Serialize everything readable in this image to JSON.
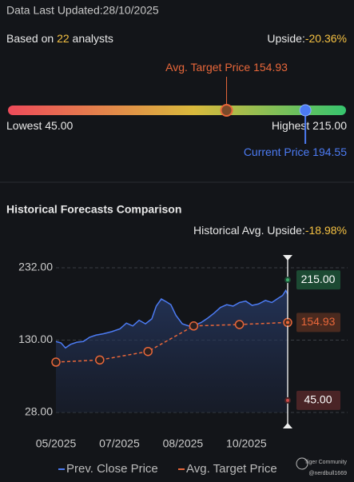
{
  "header": {
    "updated": "Data Last Updated:28/10/2025"
  },
  "analysts": {
    "prefix": "Based on",
    "count": 22,
    "suffix": "analysts",
    "upside_label": "Upside:",
    "upside": "-20.36%"
  },
  "range": {
    "lowest": {
      "label": "Lowest",
      "value": 45,
      "value_label": "45.00"
    },
    "highest": {
      "label": "Highest",
      "value": 215,
      "value_label": "215.00"
    },
    "avg": {
      "label": "Avg. Target Price",
      "value": 154.93,
      "color": "#e8673a"
    },
    "current": {
      "label": "Current Price",
      "value": 194.55,
      "color": "#4c7bf3"
    }
  },
  "chart_data": {
    "type": "line",
    "title": "Historical Forecasts Comparison",
    "upside_label": "Historical Avg. Upside:",
    "upside": "-18.98%",
    "xlim": [
      0,
      3.65
    ],
    "xticks": [
      {
        "value": 0,
        "label": "05/2025"
      },
      {
        "value": 1,
        "label": "07/2025"
      },
      {
        "value": 2,
        "label": "08/2025"
      },
      {
        "value": 3,
        "label": "10/2025"
      }
    ],
    "ylim": [
      28,
      232
    ],
    "yticks": [
      {
        "value": 28,
        "label": "28.00"
      },
      {
        "value": 130,
        "label": "130.00"
      },
      {
        "value": 232,
        "label": "232.00"
      }
    ],
    "grid": true,
    "series": [
      {
        "name": "Prev. Close Price",
        "color": "#4c7bf3",
        "x": [
          0,
          0.08,
          0.15,
          0.23,
          0.33,
          0.43,
          0.53,
          0.63,
          0.75,
          0.88,
          1.01,
          1.11,
          1.21,
          1.31,
          1.41,
          1.51,
          1.58,
          1.66,
          1.74,
          1.81,
          1.89,
          1.99,
          2.09,
          2.19,
          2.29,
          2.39,
          2.49,
          2.59,
          2.69,
          2.79,
          2.89,
          2.99,
          3.09,
          3.19,
          3.3,
          3.4,
          3.5,
          3.57,
          3.62,
          3.65
        ],
        "values": [
          128,
          126,
          119,
          124,
          127,
          128,
          134,
          137,
          139,
          142,
          146,
          154,
          150,
          158,
          153,
          160,
          178,
          188,
          184,
          180,
          165,
          153,
          150,
          151,
          155,
          161,
          168,
          176,
          180,
          178,
          183,
          185,
          179,
          181,
          186,
          183,
          189,
          193,
          200,
          194.55
        ]
      },
      {
        "name": "Avg. Target Price",
        "color": "#e8673a",
        "x": [
          0,
          0.69,
          1.45,
          2.17,
          2.89,
          3.65
        ],
        "values": [
          99,
          102,
          114,
          150,
          152,
          154.93
        ]
      }
    ],
    "markers": [
      {
        "value": 215,
        "label": "215.00",
        "color": "#3fae6e",
        "box": "#1c4a33",
        "text": "#ffffff"
      },
      {
        "value": 154.93,
        "label": "154.93",
        "color": "#e8673a",
        "box": "#4a2a1f",
        "text": "#e8673a"
      },
      {
        "value": 45,
        "label": "45.00",
        "color": "#c94a4a",
        "box": "#4a2426",
        "text": "#ffffff"
      }
    ]
  },
  "watermark": {
    "brand": "Tiger Community",
    "handle": "@nerdbull1669"
  }
}
